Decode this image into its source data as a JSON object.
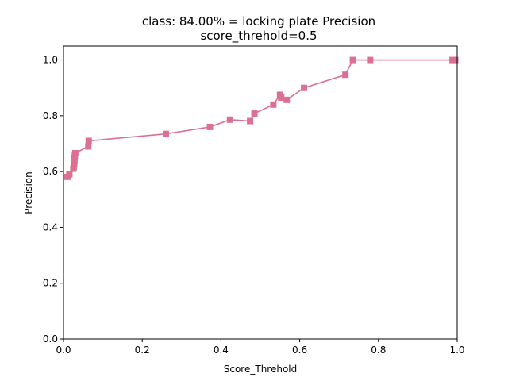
{
  "chart_data": {
    "type": "line",
    "title_line1": "class: 84.00% = locking plate Precision",
    "title_line2": "score_threhold=0.5",
    "xlabel": "Score_Threhold",
    "ylabel": "Precision",
    "xlim": [
      0.0,
      1.0
    ],
    "ylim": [
      0.0,
      1.05
    ],
    "xticks": [
      "0.0",
      "0.2",
      "0.4",
      "0.6",
      "0.8",
      "1.0"
    ],
    "yticks": [
      "0.0",
      "0.2",
      "0.4",
      "0.6",
      "0.8",
      "1.0"
    ],
    "grid": false,
    "marker": "square",
    "color": "#db7093",
    "series": [
      {
        "points": [
          {
            "x": 0.01,
            "y": 0.581
          },
          {
            "x": 0.015,
            "y": 0.59
          },
          {
            "x": 0.025,
            "y": 0.61
          },
          {
            "x": 0.026,
            "y": 0.617
          },
          {
            "x": 0.027,
            "y": 0.625
          },
          {
            "x": 0.027,
            "y": 0.633
          },
          {
            "x": 0.028,
            "y": 0.641
          },
          {
            "x": 0.028,
            "y": 0.65
          },
          {
            "x": 0.029,
            "y": 0.658
          },
          {
            "x": 0.03,
            "y": 0.666
          },
          {
            "x": 0.063,
            "y": 0.69
          },
          {
            "x": 0.064,
            "y": 0.71
          },
          {
            "x": 0.26,
            "y": 0.735
          },
          {
            "x": 0.372,
            "y": 0.76
          },
          {
            "x": 0.423,
            "y": 0.786
          },
          {
            "x": 0.474,
            "y": 0.781
          },
          {
            "x": 0.485,
            "y": 0.808
          },
          {
            "x": 0.533,
            "y": 0.84
          },
          {
            "x": 0.55,
            "y": 0.875
          },
          {
            "x": 0.553,
            "y": 0.865
          },
          {
            "x": 0.567,
            "y": 0.857
          },
          {
            "x": 0.611,
            "y": 0.9
          },
          {
            "x": 0.716,
            "y": 0.947
          },
          {
            "x": 0.735,
            "y": 1.0
          },
          {
            "x": 0.779,
            "y": 1.0
          },
          {
            "x": 0.988,
            "y": 1.0
          },
          {
            "x": 0.995,
            "y": 1.0
          }
        ]
      }
    ]
  }
}
